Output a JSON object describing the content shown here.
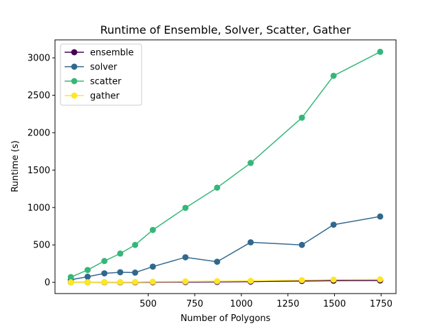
{
  "chart_data": {
    "type": "line",
    "title": "Runtime of Ensemble, Solver, Scatter, Gather",
    "xlabel": "Number of Polygons",
    "ylabel": "Runtime (s)",
    "xlim": [
      0,
      1830
    ],
    "ylim": [
      -150,
      3240
    ],
    "xticks": [
      500,
      750,
      1000,
      1250,
      1500,
      1750
    ],
    "yticks": [
      0,
      500,
      1000,
      1500,
      2000,
      2500,
      3000
    ],
    "x": [
      85,
      175,
      265,
      350,
      430,
      525,
      700,
      870,
      1050,
      1325,
      1495,
      1745
    ],
    "series": [
      {
        "name": "ensemble",
        "color": "#440154",
        "values": [
          0,
          0,
          0,
          0,
          0,
          2,
          4,
          6,
          10,
          18,
          22,
          25
        ]
      },
      {
        "name": "solver",
        "color": "#31688e",
        "values": [
          35,
          75,
          120,
          135,
          130,
          210,
          335,
          275,
          535,
          500,
          770,
          880
        ]
      },
      {
        "name": "scatter",
        "color": "#35b779",
        "values": [
          70,
          165,
          285,
          385,
          500,
          700,
          995,
          1265,
          1595,
          2200,
          2760,
          3080
        ]
      },
      {
        "name": "gather",
        "color": "#fde725",
        "values": [
          0,
          0,
          2,
          3,
          4,
          8,
          12,
          15,
          20,
          30,
          36,
          40
        ]
      }
    ],
    "legend": "upper-left",
    "grid": false
  }
}
